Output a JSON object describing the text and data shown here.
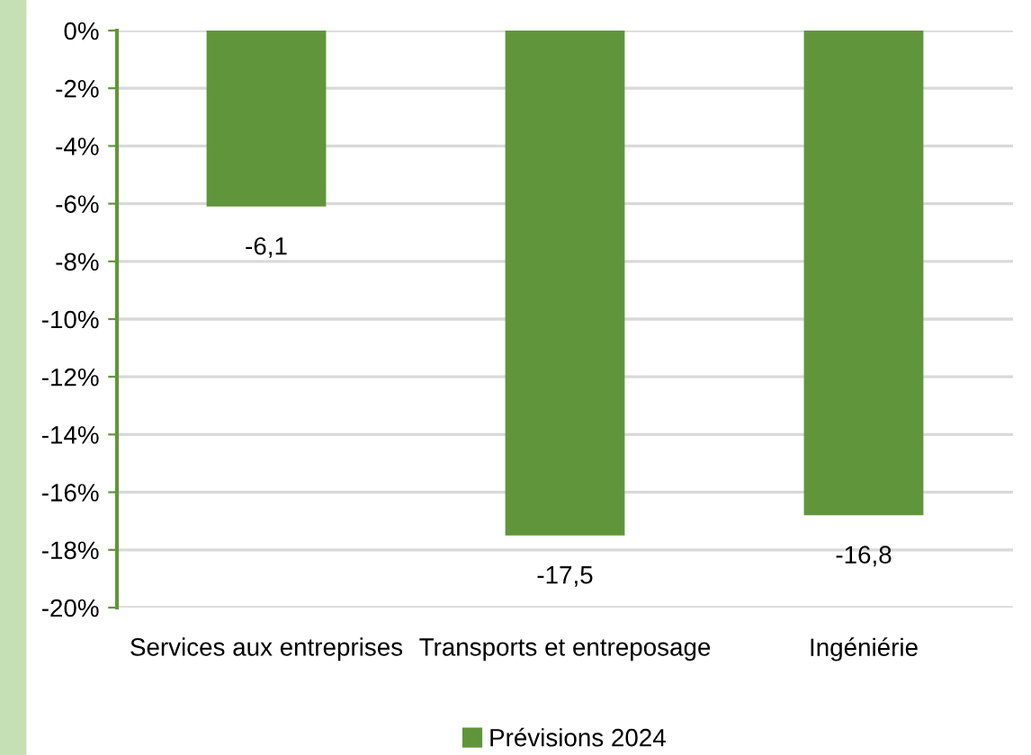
{
  "chart_data": {
    "type": "bar",
    "categories": [
      "Services aux entreprises",
      "Transports et entreposage",
      "Ingéniérie"
    ],
    "series": [
      {
        "name": "Prévisions 2024",
        "color": "#61953b",
        "values": [
          -6.1,
          -17.5,
          -16.8
        ],
        "value_labels": [
          "-6,1",
          "-17,5",
          "-16,8"
        ]
      }
    ],
    "ylim": [
      -20,
      0
    ],
    "yticks": [
      {
        "value": 0,
        "label": "0%"
      },
      {
        "value": -2,
        "label": "-2%"
      },
      {
        "value": -4,
        "label": "-4%"
      },
      {
        "value": -6,
        "label": "-6%"
      },
      {
        "value": -8,
        "label": "-8%"
      },
      {
        "value": -10,
        "label": "-10%"
      },
      {
        "value": -12,
        "label": "-12%"
      },
      {
        "value": -14,
        "label": "-14%"
      },
      {
        "value": -16,
        "label": "-16%"
      },
      {
        "value": -18,
        "label": "-18%"
      },
      {
        "value": -20,
        "label": "-20%"
      }
    ],
    "grid": "y",
    "legend": "bottom"
  }
}
